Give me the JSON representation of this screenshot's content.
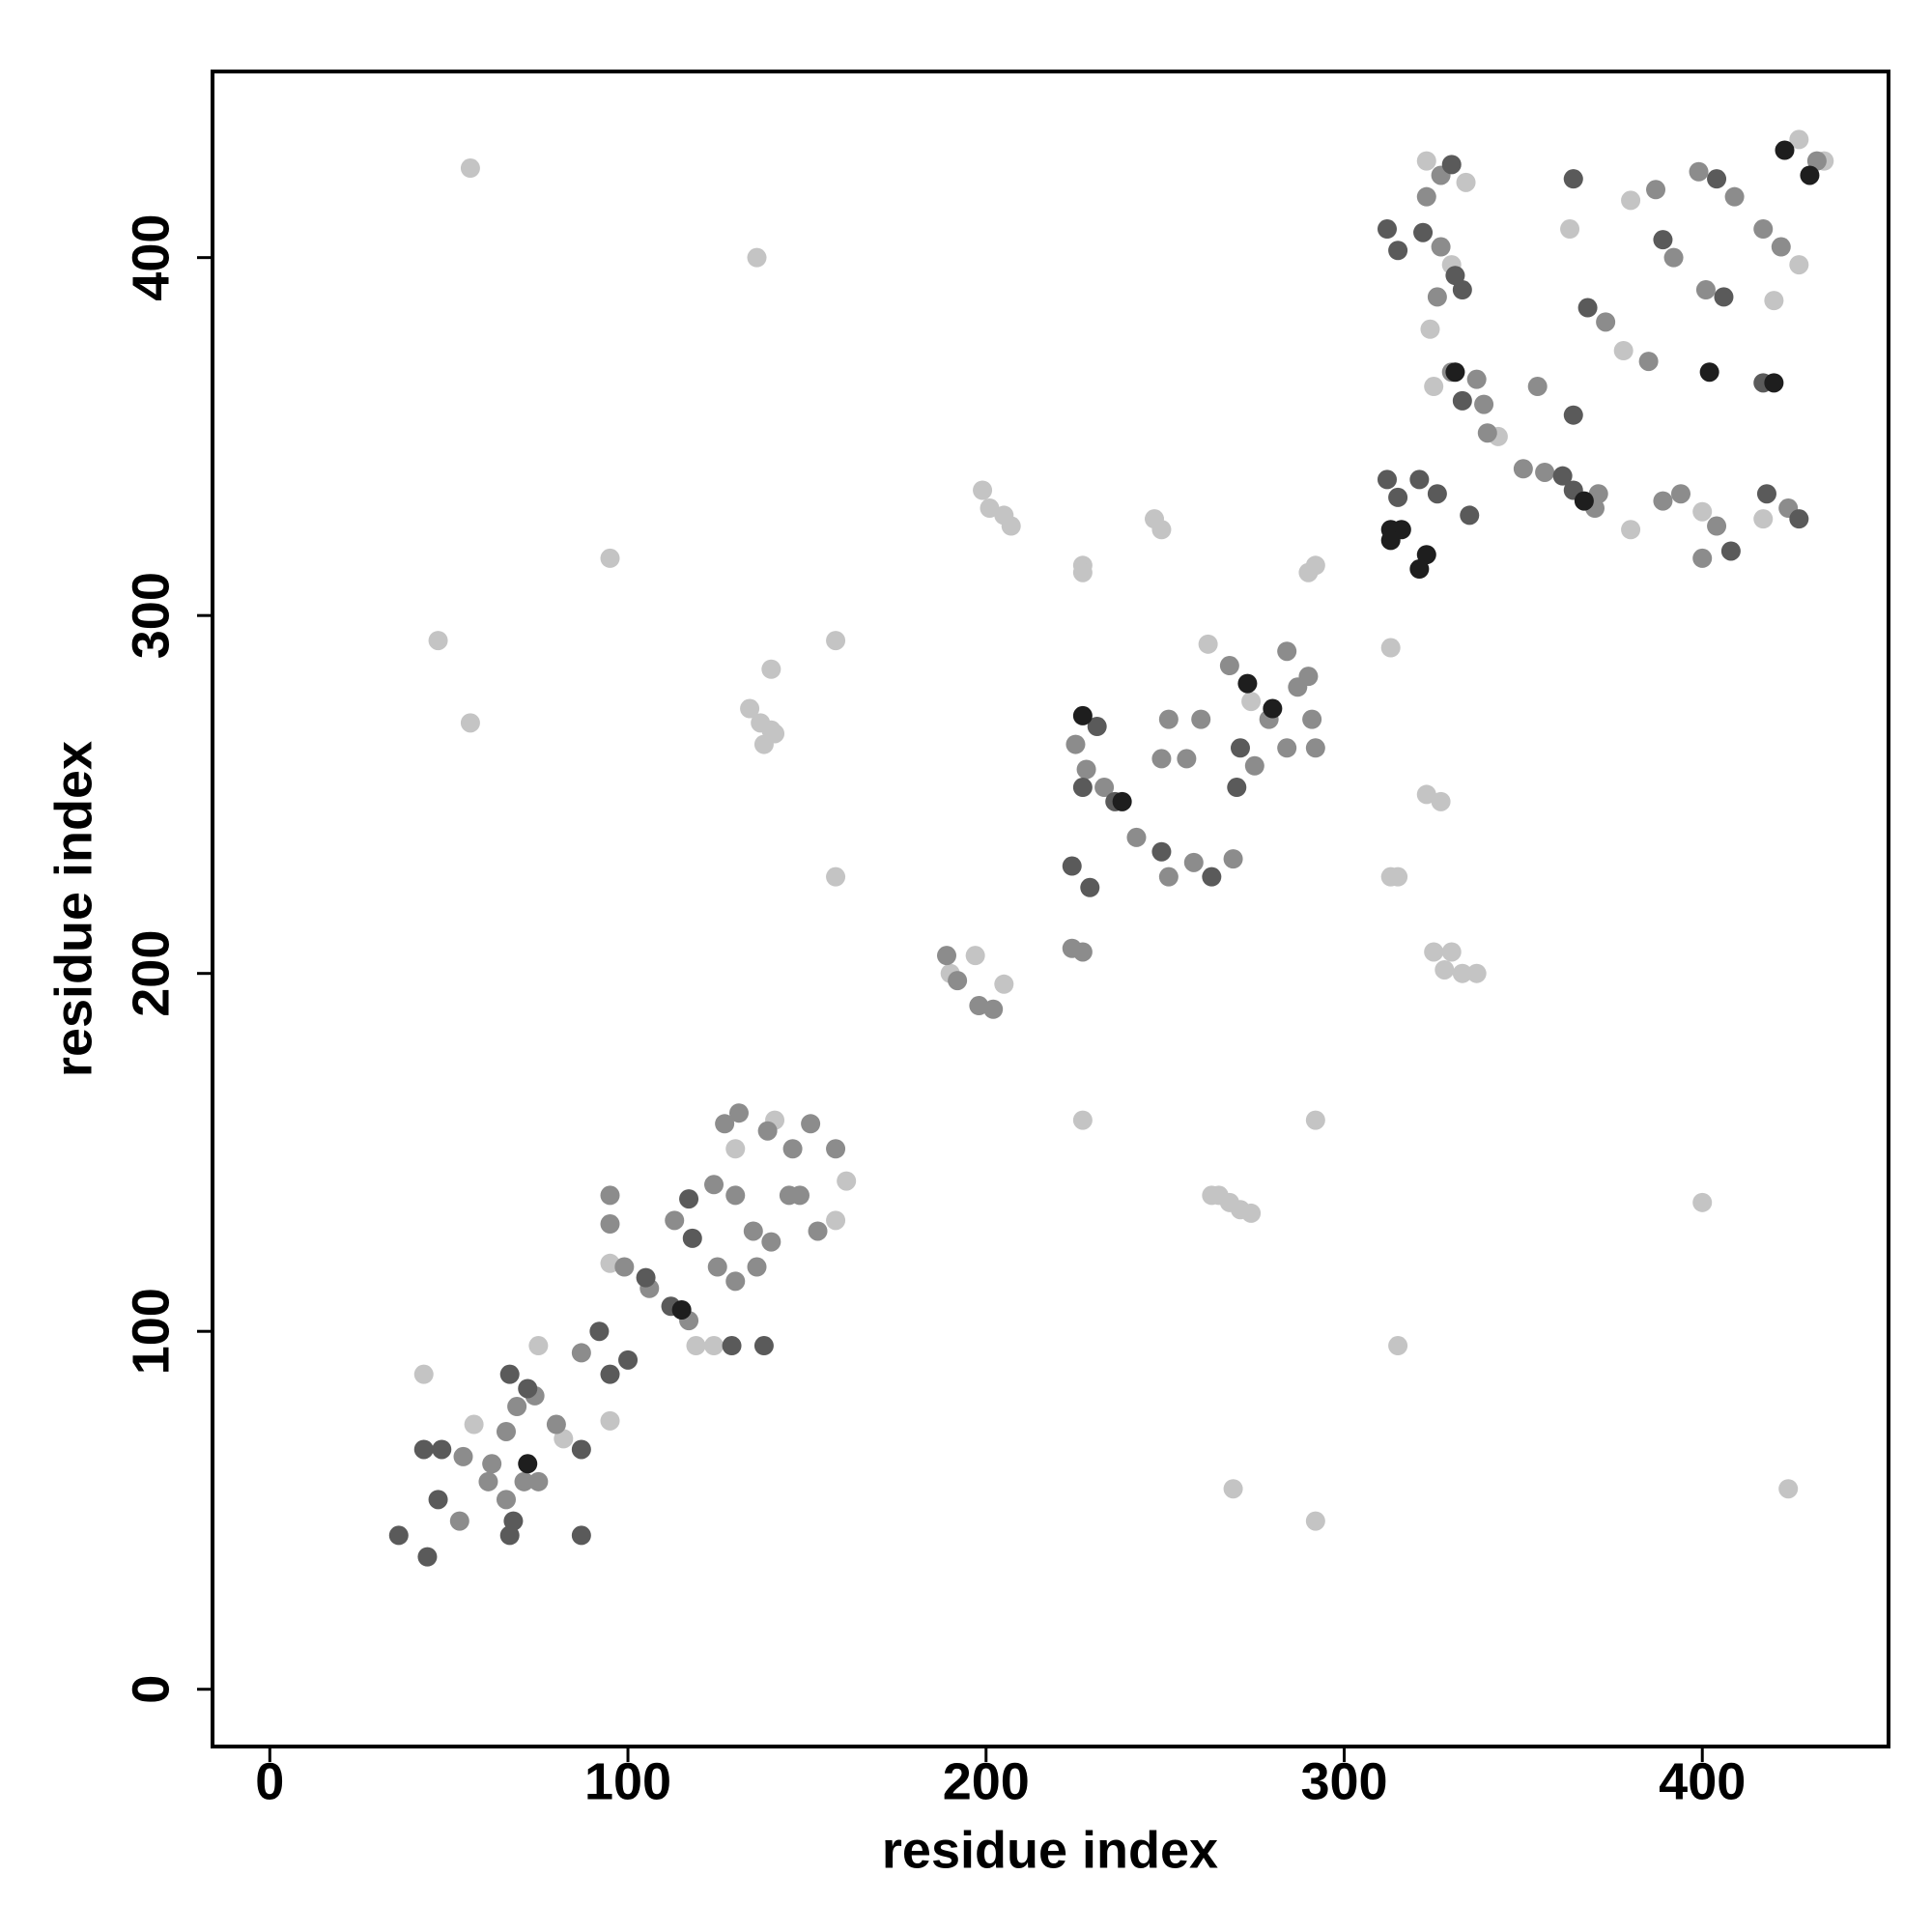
{
  "chart_data": {
    "type": "scatter",
    "xlabel": "residue index",
    "ylabel": "residue index",
    "xlim": [
      -16,
      452
    ],
    "ylim": [
      -16,
      452
    ],
    "xticks": [
      0,
      100,
      200,
      300,
      400
    ],
    "yticks": [
      0,
      100,
      200,
      300,
      400
    ],
    "series": [
      {
        "color": "#c4c4c4",
        "x": [
          56,
          136,
          95,
          47,
          56,
          158,
          140,
          134,
          137,
          140,
          138,
          141,
          158,
          199,
          201,
          205,
          207,
          247,
          249,
          227,
          227,
          292,
          290,
          313,
          313,
          315,
          323,
          327,
          325,
          330,
          328,
          333,
          337,
          227,
          292,
          263,
          265,
          268,
          271,
          274,
          400,
          315,
          269,
          292,
          424,
          380,
          75,
          43,
          57,
          82,
          95,
          95,
          124,
          119,
          130,
          141,
          158,
          161,
          190,
          197,
          205,
          262,
          274,
          323,
          334,
          330,
          324,
          325,
          343,
          400,
          417,
          364,
          380,
          434,
          427,
          420,
          363,
          427,
          378
        ],
        "y": [
          425,
          400,
          316,
          293,
          270,
          293,
          285,
          274,
          270,
          268,
          264,
          267,
          227,
          335,
          330,
          328,
          325,
          327,
          324,
          314,
          312,
          314,
          312,
          291,
          227,
          227,
          250,
          248,
          206,
          206,
          201,
          200,
          200,
          159,
          159,
          138,
          138,
          136,
          134,
          133,
          136,
          96,
          56,
          47,
          56,
          324,
          96,
          88,
          74,
          70,
          75,
          119,
          96,
          96,
          151,
          159,
          131,
          142,
          200,
          205,
          197,
          292,
          276,
          427,
          421,
          398,
          380,
          364,
          350,
          329,
          327,
          422,
          416,
          427,
          433,
          388,
          408,
          398,
          374
        ]
      },
      {
        "color": "#8c8c8c",
        "x": [
          53,
          54,
          62,
          66,
          71,
          75,
          66,
          69,
          74,
          80,
          61,
          87,
          95,
          95,
          99,
          106,
          117,
          113,
          125,
          130,
          136,
          124,
          130,
          135,
          140,
          127,
          131,
          139,
          146,
          151,
          148,
          153,
          158,
          145,
          189,
          192,
          198,
          202,
          224,
          227,
          225,
          228,
          233,
          242,
          251,
          258,
          269,
          256,
          260,
          251,
          249,
          268,
          275,
          284,
          287,
          291,
          284,
          279,
          290,
          292,
          327,
          323,
          327,
          326,
          330,
          337,
          339,
          340,
          350,
          356,
          371,
          370,
          389,
          394,
          404,
          400,
          424,
          354,
          373,
          385,
          392,
          401,
          399,
          409,
          422,
          387,
          432,
          417
        ],
        "y": [
          47,
          65,
          63,
          53,
          58,
          58,
          72,
          79,
          82,
          74,
          58,
          94,
          138,
          130,
          118,
          112,
          103,
          131,
          118,
          114,
          118,
          141,
          138,
          128,
          125,
          158,
          161,
          156,
          151,
          158,
          138,
          128,
          151,
          138,
          205,
          198,
          191,
          190,
          207,
          206,
          264,
          257,
          252,
          238,
          227,
          231,
          232,
          260,
          271,
          271,
          260,
          286,
          258,
          290,
          280,
          271,
          263,
          271,
          283,
          263,
          423,
          417,
          403,
          389,
          368,
          366,
          359,
          351,
          341,
          340,
          334,
          330,
          332,
          334,
          325,
          316,
          330,
          364,
          382,
          371,
          400,
          391,
          424,
          417,
          403,
          419,
          427,
          408
        ]
      },
      {
        "color": "#5a5a5a",
        "x": [
          36,
          44,
          47,
          43,
          48,
          67,
          68,
          67,
          72,
          87,
          87,
          92,
          100,
          95,
          105,
          112,
          118,
          117,
          129,
          138,
          224,
          229,
          231,
          227,
          236,
          249,
          263,
          270,
          271,
          312,
          315,
          322,
          333,
          331,
          312,
          315,
          321,
          326,
          335,
          361,
          364,
          408,
          418,
          427,
          364,
          368,
          389,
          406,
          404,
          364,
          417,
          333,
          330
        ],
        "y": [
          43,
          37,
          53,
          67,
          67,
          43,
          47,
          88,
          84,
          67,
          43,
          100,
          92,
          88,
          115,
          107,
          126,
          137,
          96,
          96,
          230,
          224,
          269,
          252,
          248,
          234,
          227,
          252,
          263,
          408,
          402,
          407,
          391,
          395,
          338,
          333,
          338,
          334,
          328,
          339,
          335,
          318,
          334,
          327,
          356,
          386,
          405,
          389,
          422,
          422,
          365,
          360,
          426
        ]
      },
      {
        "color": "#1e1e1e",
        "x": [
          316,
          313,
          313,
          323,
          321,
          273,
          115,
          72,
          423,
          430,
          402,
          420,
          331,
          367,
          238,
          227,
          280
        ],
        "y": [
          324,
          324,
          321,
          317,
          313,
          281,
          106,
          63,
          430,
          423,
          368,
          365,
          368,
          332,
          248,
          272,
          274
        ]
      }
    ]
  }
}
